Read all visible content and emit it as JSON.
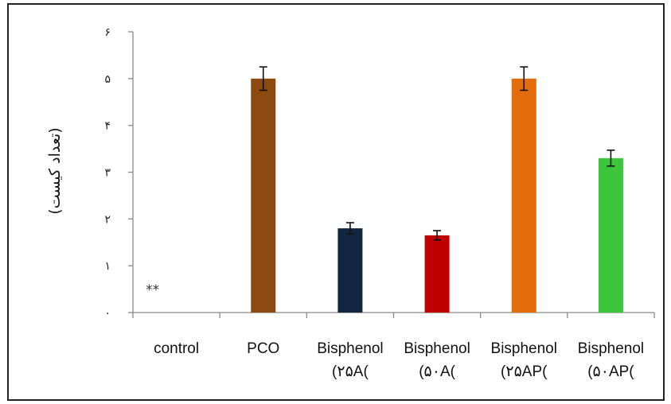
{
  "chart_data": {
    "type": "bar",
    "title": "",
    "xlabel": "",
    "ylabel": "(تعداد کیست)",
    "ylim": [
      0,
      6
    ],
    "yticks": [
      {
        "value": 0,
        "label": "۰"
      },
      {
        "value": 1,
        "label": "۱"
      },
      {
        "value": 2,
        "label": "۲"
      },
      {
        "value": 3,
        "label": "۳"
      },
      {
        "value": 4,
        "label": "۴"
      },
      {
        "value": 5,
        "label": "۵"
      },
      {
        "value": 6,
        "label": "۶"
      }
    ],
    "categories": [
      {
        "lines": [
          "control"
        ]
      },
      {
        "lines": [
          "PCO"
        ]
      },
      {
        "lines": [
          "Bisphenol",
          "(۲۵A("
        ]
      },
      {
        "lines": [
          "Bisphenol",
          "(۵۰A("
        ]
      },
      {
        "lines": [
          "Bisphenol",
          "(۲۵AP("
        ]
      },
      {
        "lines": [
          "Bisphenol",
          "(۵۰AP("
        ]
      }
    ],
    "values": [
      0,
      5.0,
      1.8,
      1.65,
      5.0,
      3.3
    ],
    "errors": [
      0,
      0.25,
      0.12,
      0.1,
      0.25,
      0.17
    ],
    "colors": [
      "#ffffff",
      "#8b4a10",
      "#13263f",
      "#c00000",
      "#e46c0a",
      "#3cc63c"
    ],
    "annotations": [
      {
        "category_index": 0,
        "text": "**"
      }
    ],
    "grid": false,
    "legend": "none"
  }
}
